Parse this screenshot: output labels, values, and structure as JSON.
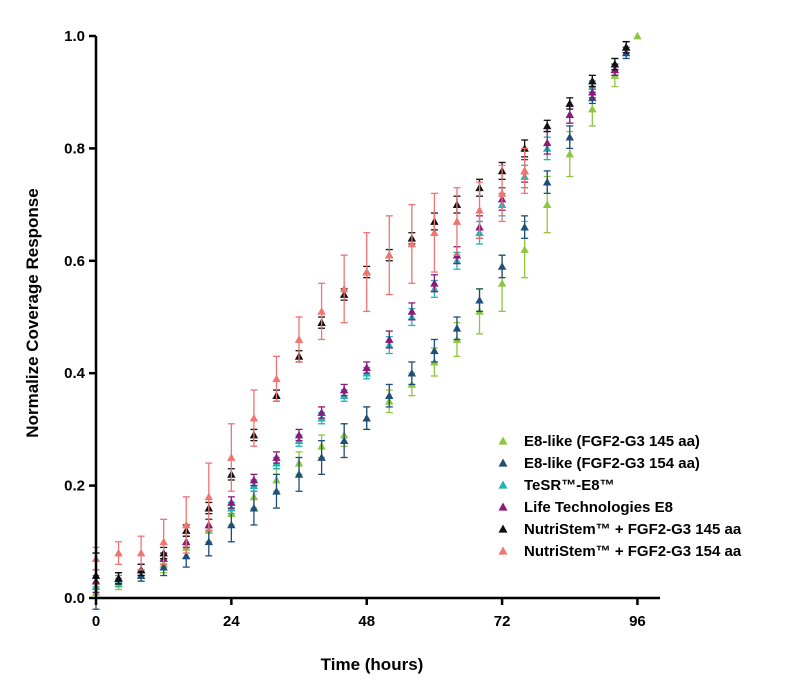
{
  "chart_data": {
    "type": "scatter",
    "title": "",
    "xlabel": "Time (hours)",
    "ylabel": "Normalize Coverage Response",
    "xlim": [
      0,
      100
    ],
    "ylim": [
      0,
      1.0
    ],
    "xticks": [
      0,
      24,
      48,
      72,
      96
    ],
    "yticks": [
      0.0,
      0.2,
      0.4,
      0.6,
      0.8,
      1.0
    ],
    "xtick_labels": [
      "0",
      "24",
      "48",
      "72",
      "96"
    ],
    "ytick_labels": [
      "0.0",
      "0.2",
      "0.4",
      "0.6",
      "0.8",
      "1.0"
    ],
    "legend_position": "bottom-right",
    "marker": "triangle",
    "series": [
      {
        "name": "E8-like (FGF2-G3 145 aa)",
        "color": "#8DC63F",
        "x": [
          0,
          4,
          8,
          12,
          16,
          20,
          24,
          28,
          32,
          36,
          40,
          44,
          48,
          52,
          56,
          60,
          64,
          68,
          72,
          76,
          80,
          84,
          88,
          92,
          96
        ],
        "y": [
          0.01,
          0.025,
          0.04,
          0.06,
          0.09,
          0.12,
          0.15,
          0.18,
          0.21,
          0.24,
          0.27,
          0.29,
          0.32,
          0.35,
          0.38,
          0.42,
          0.46,
          0.51,
          0.56,
          0.62,
          0.7,
          0.79,
          0.87,
          0.93,
          1.0
        ],
        "err": [
          0.01,
          0.01,
          0.01,
          0.015,
          0.02,
          0.02,
          0.02,
          0.02,
          0.02,
          0.02,
          0.02,
          0.02,
          0.02,
          0.02,
          0.02,
          0.025,
          0.03,
          0.04,
          0.05,
          0.05,
          0.05,
          0.04,
          0.03,
          0.02,
          0.0
        ]
      },
      {
        "name": "E8-like (FGF2-G3 154 aa)",
        "color": "#1F4E79",
        "x": [
          0,
          4,
          8,
          12,
          16,
          20,
          24,
          28,
          32,
          36,
          40,
          44,
          48,
          52,
          56,
          60,
          64,
          68,
          72,
          76,
          80,
          84,
          88,
          92,
          94
        ],
        "y": [
          0.03,
          0.035,
          0.04,
          0.055,
          0.075,
          0.1,
          0.13,
          0.16,
          0.19,
          0.22,
          0.25,
          0.28,
          0.32,
          0.36,
          0.4,
          0.44,
          0.48,
          0.53,
          0.59,
          0.66,
          0.74,
          0.82,
          0.89,
          0.94,
          0.97
        ],
        "err": [
          0.05,
          0.01,
          0.01,
          0.015,
          0.02,
          0.025,
          0.03,
          0.03,
          0.03,
          0.03,
          0.03,
          0.03,
          0.02,
          0.02,
          0.02,
          0.02,
          0.02,
          0.02,
          0.02,
          0.02,
          0.02,
          0.02,
          0.01,
          0.01,
          0.01
        ]
      },
      {
        "name": "TeSR™-E8™",
        "color": "#1FB5B5",
        "x": [
          0,
          4,
          8,
          12,
          16,
          20,
          24,
          28,
          32,
          36,
          40,
          44,
          48,
          52,
          56,
          60,
          64,
          68,
          72,
          76,
          80,
          84,
          88,
          92,
          94
        ],
        "y": [
          0.02,
          0.03,
          0.05,
          0.07,
          0.1,
          0.13,
          0.16,
          0.2,
          0.24,
          0.28,
          0.32,
          0.36,
          0.4,
          0.45,
          0.5,
          0.55,
          0.6,
          0.65,
          0.7,
          0.75,
          0.8,
          0.86,
          0.91,
          0.95,
          0.98
        ],
        "err": [
          0.02,
          0.01,
          0.01,
          0.01,
          0.01,
          0.01,
          0.01,
          0.01,
          0.01,
          0.01,
          0.01,
          0.01,
          0.01,
          0.015,
          0.015,
          0.015,
          0.015,
          0.02,
          0.02,
          0.02,
          0.02,
          0.015,
          0.01,
          0.01,
          0.01
        ]
      },
      {
        "name": "Life Technologies E8",
        "color": "#8B1A7A",
        "x": [
          0,
          4,
          8,
          12,
          16,
          20,
          24,
          28,
          32,
          36,
          40,
          44,
          48,
          52,
          56,
          60,
          64,
          68,
          72,
          76,
          80,
          84,
          88,
          92,
          94
        ],
        "y": [
          0.03,
          0.035,
          0.05,
          0.07,
          0.1,
          0.13,
          0.17,
          0.21,
          0.25,
          0.29,
          0.33,
          0.37,
          0.41,
          0.46,
          0.51,
          0.56,
          0.61,
          0.66,
          0.71,
          0.76,
          0.81,
          0.86,
          0.9,
          0.94,
          0.98
        ],
        "err": [
          0.02,
          0.01,
          0.01,
          0.01,
          0.01,
          0.01,
          0.01,
          0.01,
          0.01,
          0.01,
          0.01,
          0.01,
          0.01,
          0.015,
          0.015,
          0.015,
          0.015,
          0.02,
          0.02,
          0.02,
          0.02,
          0.015,
          0.01,
          0.01,
          0.01
        ]
      },
      {
        "name": "NutriStem™ + FGF2-G3 145 aa",
        "color": "#111111",
        "x": [
          0,
          4,
          8,
          12,
          16,
          20,
          24,
          28,
          32,
          36,
          40,
          44,
          48,
          52,
          56,
          60,
          64,
          68,
          72,
          76,
          80,
          84,
          88,
          92,
          94
        ],
        "y": [
          0.04,
          0.035,
          0.05,
          0.08,
          0.12,
          0.16,
          0.22,
          0.29,
          0.36,
          0.43,
          0.49,
          0.54,
          0.58,
          0.61,
          0.64,
          0.67,
          0.7,
          0.73,
          0.76,
          0.8,
          0.84,
          0.88,
          0.92,
          0.95,
          0.98
        ],
        "err": [
          0.04,
          0.01,
          0.01,
          0.01,
          0.01,
          0.01,
          0.01,
          0.01,
          0.01,
          0.01,
          0.01,
          0.01,
          0.01,
          0.01,
          0.01,
          0.015,
          0.015,
          0.015,
          0.015,
          0.015,
          0.01,
          0.01,
          0.01,
          0.01,
          0.01
        ]
      },
      {
        "name": "NutriStem™ + FGF2-G3 154 aa",
        "color": "#F07470",
        "x": [
          0,
          4,
          8,
          12,
          16,
          20,
          24,
          28,
          32,
          36,
          40,
          44,
          48,
          52,
          56,
          60,
          64,
          68,
          72,
          76
        ],
        "y": [
          0.07,
          0.08,
          0.08,
          0.1,
          0.13,
          0.18,
          0.25,
          0.32,
          0.39,
          0.46,
          0.51,
          0.55,
          0.58,
          0.61,
          0.63,
          0.65,
          0.67,
          0.69,
          0.72,
          0.76
        ],
        "err": [
          0.02,
          0.02,
          0.03,
          0.04,
          0.05,
          0.06,
          0.06,
          0.05,
          0.04,
          0.04,
          0.05,
          0.06,
          0.07,
          0.07,
          0.07,
          0.07,
          0.06,
          0.05,
          0.05,
          0.04
        ]
      }
    ]
  }
}
